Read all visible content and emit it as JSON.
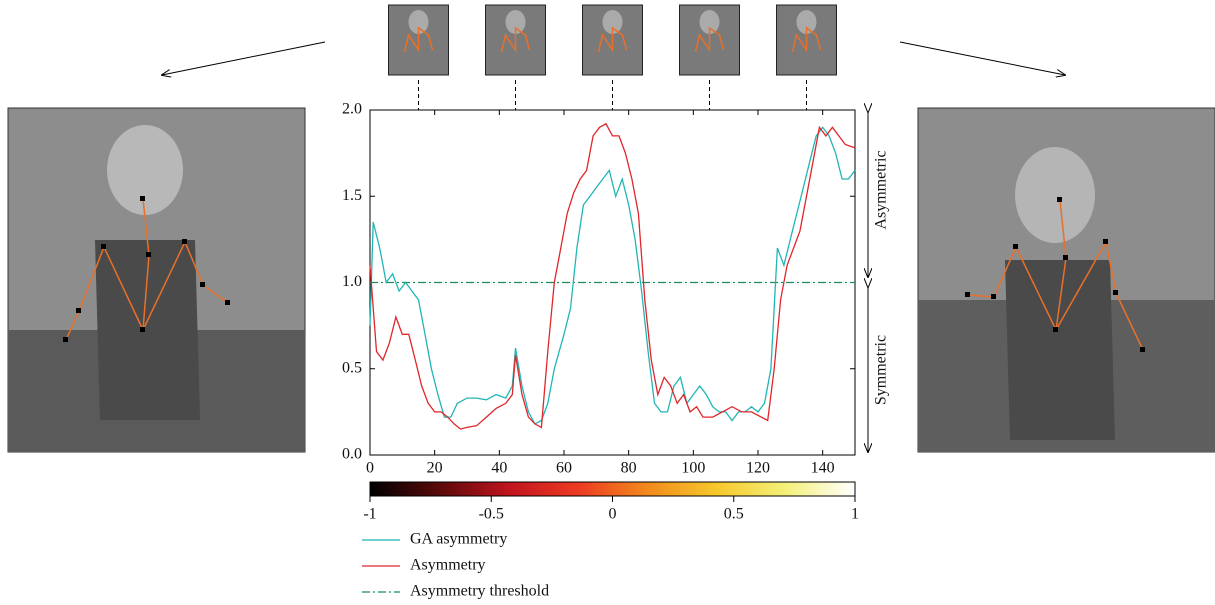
{
  "chart_data": {
    "type": "line",
    "xlim": [
      0,
      150
    ],
    "xticks": [
      0,
      20,
      40,
      60,
      80,
      100,
      120,
      140
    ],
    "ylim": [
      0,
      2
    ],
    "yticks": [
      {
        "value": 0,
        "label": "0.0"
      },
      {
        "value": 0.5,
        "label": "0.5"
      },
      {
        "value": 1,
        "label": "1.0"
      },
      {
        "value": 1.5,
        "label": "1.5"
      },
      {
        "value": 2,
        "label": "2.0"
      }
    ],
    "series": [
      {
        "name": "GA asymmetry",
        "color": "#22b5b5",
        "x": [
          0,
          1,
          3,
          5,
          7,
          9,
          11,
          13,
          15,
          17,
          19,
          21,
          23,
          25,
          27,
          30,
          33,
          36,
          39,
          42,
          44,
          45,
          47,
          49,
          51,
          53,
          55,
          57,
          60,
          62,
          64,
          66,
          68,
          70,
          72,
          74,
          76,
          78,
          80,
          82,
          84,
          86,
          88,
          90,
          92,
          94,
          96,
          98,
          100,
          102,
          104,
          106,
          108,
          110,
          112,
          114,
          116,
          118,
          120,
          122,
          124,
          126,
          128,
          130,
          132,
          134,
          136,
          138,
          140,
          142,
          144,
          146,
          148,
          150
        ],
        "values": [
          0.75,
          1.35,
          1.2,
          1.0,
          1.05,
          0.95,
          1.0,
          0.95,
          0.9,
          0.7,
          0.5,
          0.35,
          0.22,
          0.22,
          0.3,
          0.33,
          0.33,
          0.32,
          0.35,
          0.33,
          0.4,
          0.62,
          0.4,
          0.25,
          0.18,
          0.2,
          0.3,
          0.5,
          0.7,
          0.85,
          1.2,
          1.45,
          1.5,
          1.55,
          1.6,
          1.65,
          1.5,
          1.6,
          1.45,
          1.25,
          0.95,
          0.6,
          0.3,
          0.25,
          0.25,
          0.4,
          0.45,
          0.3,
          0.35,
          0.4,
          0.35,
          0.28,
          0.25,
          0.25,
          0.2,
          0.25,
          0.25,
          0.28,
          0.25,
          0.3,
          0.5,
          1.2,
          1.1,
          1.25,
          1.4,
          1.55,
          1.7,
          1.85,
          1.9,
          1.85,
          1.75,
          1.6,
          1.6,
          1.65
        ]
      },
      {
        "name": "Asymmetry",
        "color": "#e0262a",
        "x": [
          0,
          2,
          4,
          6,
          8,
          10,
          12,
          14,
          16,
          18,
          20,
          22,
          24,
          26,
          28,
          30,
          33,
          36,
          39,
          42,
          44,
          45,
          47,
          49,
          51,
          53,
          55,
          57,
          59,
          61,
          63,
          65,
          67,
          69,
          71,
          73,
          75,
          77,
          79,
          81,
          83,
          85,
          87,
          89,
          91,
          93,
          95,
          97,
          99,
          101,
          103,
          106,
          109,
          112,
          115,
          118,
          121,
          123,
          125,
          127,
          129,
          131,
          133,
          135,
          137,
          139,
          141,
          143,
          145,
          147,
          150
        ],
        "values": [
          1.1,
          0.6,
          0.55,
          0.65,
          0.8,
          0.7,
          0.7,
          0.55,
          0.4,
          0.3,
          0.25,
          0.25,
          0.22,
          0.18,
          0.15,
          0.16,
          0.17,
          0.22,
          0.27,
          0.3,
          0.35,
          0.58,
          0.35,
          0.22,
          0.18,
          0.16,
          0.6,
          1.0,
          1.2,
          1.4,
          1.52,
          1.6,
          1.65,
          1.85,
          1.9,
          1.92,
          1.85,
          1.85,
          1.75,
          1.6,
          1.4,
          0.9,
          0.55,
          0.35,
          0.45,
          0.4,
          0.3,
          0.35,
          0.25,
          0.28,
          0.22,
          0.22,
          0.25,
          0.28,
          0.25,
          0.25,
          0.22,
          0.2,
          0.5,
          0.9,
          1.1,
          1.2,
          1.3,
          1.5,
          1.7,
          1.9,
          1.85,
          1.9,
          1.85,
          1.8,
          1.78
        ]
      }
    ],
    "threshold": {
      "name": "Asymmetry threshold",
      "value": 1,
      "color": "#1e8a5a"
    },
    "frame_x": [
      15,
      45,
      75,
      105,
      135
    ],
    "regions": {
      "upper": "Asymmetric",
      "lower": "Symmetric"
    },
    "colorbar": {
      "lim": [
        -1,
        1
      ],
      "ticks": [
        -1,
        -0.5,
        0,
        0.5,
        1
      ],
      "colors": [
        "#000000",
        "#5a0a0a",
        "#c0141e",
        "#ec3a22",
        "#f28a1c",
        "#f6c82c",
        "#f4f07a",
        "#ffffff"
      ]
    }
  }
}
